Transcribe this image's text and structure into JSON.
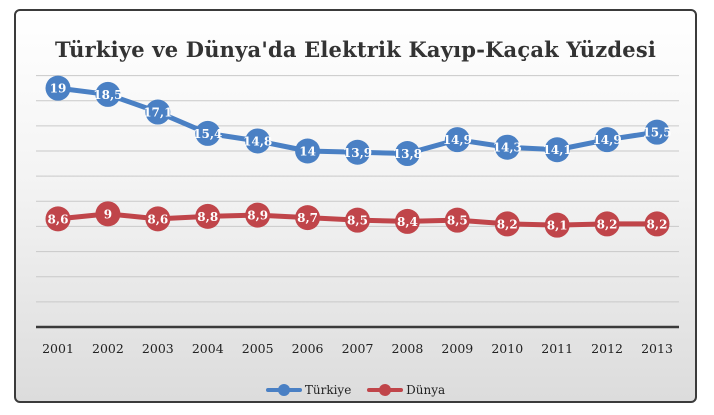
{
  "chart_data": {
    "type": "line",
    "title": "Türkiye ve Dünya'da Elektrik Kayıp-Kaçak Yüzdesi",
    "categories": [
      "2001",
      "2002",
      "2003",
      "2004",
      "2005",
      "2006",
      "2007",
      "2008",
      "2009",
      "2010",
      "2011",
      "2012",
      "2013"
    ],
    "series": [
      {
        "name": "Türkiye",
        "color": "#4a80c4",
        "values": [
          19,
          18.5,
          17.1,
          15.4,
          14.8,
          14,
          13.9,
          13.8,
          14.9,
          14.3,
          14.1,
          14.9,
          15.5
        ],
        "labels": [
          "19",
          "18,5",
          "17,1",
          "15,4",
          "14,8",
          "14",
          "13,9",
          "13,8",
          "14,9",
          "14,3",
          "14,1",
          "14,9",
          "15,5"
        ]
      },
      {
        "name": "Dünya",
        "color": "#c0454a",
        "values": [
          8.6,
          9,
          8.6,
          8.8,
          8.9,
          8.7,
          8.5,
          8.4,
          8.5,
          8.2,
          8.1,
          8.2,
          8.2
        ],
        "labels": [
          "8,6",
          "9",
          "8,6",
          "8,8",
          "8,9",
          "8,7",
          "8,5",
          "8,4",
          "8,5",
          "8,2",
          "8,1",
          "8,2",
          "8,2"
        ]
      }
    ],
    "ylim": [
      0,
      21
    ],
    "grid": true,
    "legend": "bottom"
  }
}
